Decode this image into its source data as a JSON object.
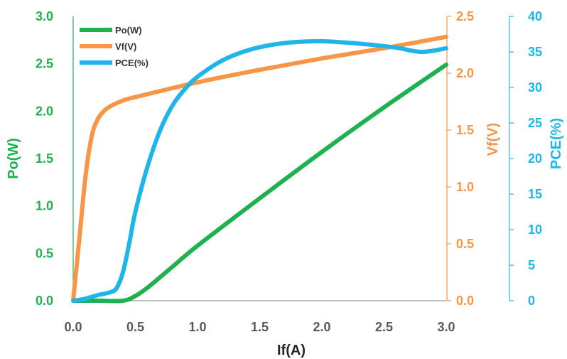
{
  "chart_data": {
    "type": "line",
    "title": "",
    "xlabel": "If(A)",
    "x_ticks": [
      "0.0",
      "0.5",
      "1.0",
      "1.5",
      "2.0",
      "2.5",
      "3.0"
    ],
    "xlim": [
      0,
      3
    ],
    "grid": false,
    "legend_position": "top-left",
    "axes": {
      "left": {
        "label": "Po(W)",
        "color": "#1DB150",
        "ylim": [
          0,
          3
        ],
        "ticks": [
          "0.0",
          "0.5",
          "1.0",
          "1.5",
          "2.0",
          "2.5",
          "3.0"
        ]
      },
      "right1": {
        "label": "Vf(V)",
        "color": "#F79646",
        "ylim": [
          0,
          2.5
        ],
        "ticks": [
          "0.0",
          "0.5",
          "1.0",
          "1.5",
          "2.0",
          "2.5"
        ]
      },
      "right2": {
        "label": "PCE(%)",
        "color": "#1FB5E8",
        "ylim": [
          0,
          40
        ],
        "ticks": [
          "0",
          "5",
          "10",
          "15",
          "20",
          "25",
          "30",
          "35",
          "40"
        ]
      }
    },
    "series": [
      {
        "name": "Po(W)",
        "axis": "left",
        "color": "#1DB150",
        "x": [
          0,
          0.2,
          0.4,
          0.5,
          0.6,
          0.8,
          1.0,
          1.5,
          2.0,
          2.5,
          3.0
        ],
        "values": [
          0,
          0,
          0,
          0.05,
          0.14,
          0.36,
          0.58,
          1.08,
          1.57,
          2.04,
          2.49
        ]
      },
      {
        "name": "Vf(V)",
        "axis": "right1",
        "color": "#F79646",
        "x": [
          0,
          0.05,
          0.1,
          0.15,
          0.2,
          0.25,
          0.3,
          0.4,
          0.5,
          1.0,
          1.5,
          2.0,
          2.5,
          3.0
        ],
        "values": [
          0,
          0.55,
          1.1,
          1.45,
          1.6,
          1.67,
          1.71,
          1.76,
          1.79,
          1.92,
          2.03,
          2.13,
          2.22,
          2.32
        ]
      },
      {
        "name": "PCE(%)",
        "axis": "right2",
        "color": "#1FB5E8",
        "x": [
          0,
          0.1,
          0.2,
          0.3,
          0.35,
          0.4,
          0.45,
          0.5,
          0.6,
          0.7,
          0.8,
          0.9,
          1.0,
          1.2,
          1.4,
          1.6,
          1.8,
          2.0,
          2.2,
          2.4,
          2.6,
          2.8,
          3.0
        ],
        "values": [
          0,
          0.3,
          0.8,
          1.2,
          1.8,
          4.0,
          8.0,
          12.5,
          19.0,
          24.0,
          27.5,
          29.8,
          31.5,
          33.8,
          35.2,
          36.0,
          36.4,
          36.5,
          36.3,
          36.0,
          35.6,
          35.0,
          35.5
        ]
      }
    ]
  }
}
